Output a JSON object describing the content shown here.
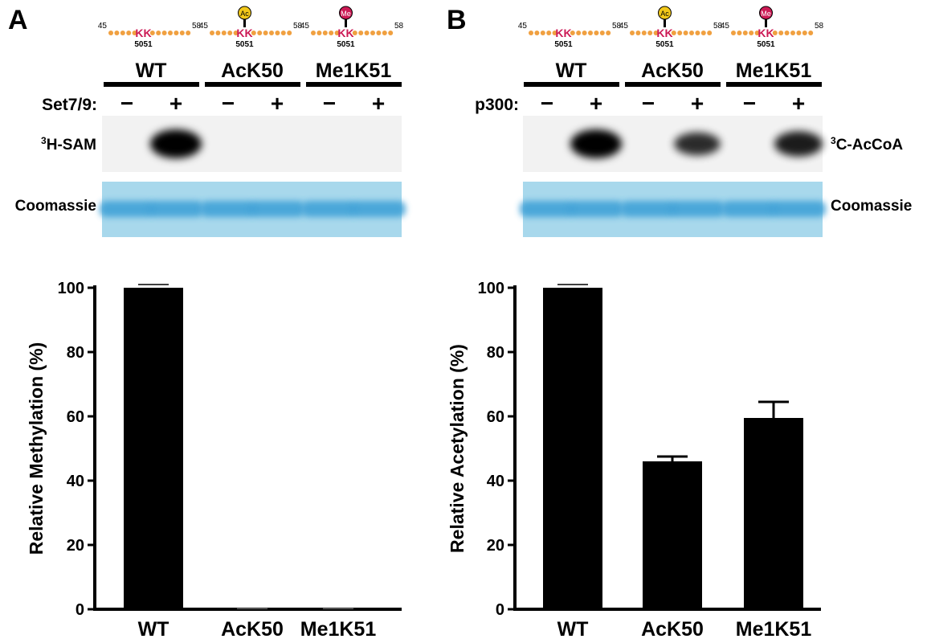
{
  "panels": [
    {
      "letter": "A",
      "enzyme_label": "Set7/9:",
      "blot_label": "H-SAM",
      "blot_label_sup": "3",
      "coomassie_label": "Coomassie",
      "peptides": [
        {
          "name": "WT",
          "start": "45",
          "end": "58",
          "kk": "KK",
          "positions": "5051",
          "modification": ""
        },
        {
          "name": "AcK50",
          "start": "45",
          "end": "58",
          "kk": "KK",
          "positions": "5051",
          "modification": "Ac"
        },
        {
          "name": "Me1K51",
          "start": "45",
          "end": "58",
          "kk": "KK",
          "positions": "5051",
          "modification": "Me"
        }
      ],
      "treatment": [
        "−",
        "+",
        "−",
        "+",
        "−",
        "+"
      ],
      "band_intensity": [
        0,
        1.0,
        0,
        0,
        0,
        0
      ]
    },
    {
      "letter": "B",
      "enzyme_label": "p300:",
      "blot_label": "C-AcCoA",
      "blot_label_sup": "3",
      "coomassie_label": "Coomassie",
      "peptides": [
        {
          "name": "WT",
          "start": "45",
          "end": "58",
          "kk": "KK",
          "positions": "5051",
          "modification": ""
        },
        {
          "name": "AcK50",
          "start": "45",
          "end": "58",
          "kk": "KK",
          "positions": "5051",
          "modification": "Ac"
        },
        {
          "name": "Me1K51",
          "start": "45",
          "end": "58",
          "kk": "KK",
          "positions": "5051",
          "modification": "Me"
        }
      ],
      "treatment": [
        "−",
        "+",
        "−",
        "+",
        "−",
        "+"
      ],
      "band_intensity": [
        0,
        1.0,
        0,
        0.6,
        0,
        0.75
      ]
    }
  ],
  "colors": {
    "residue": "#f0a040",
    "kk": "#cc1a55",
    "ac": "#f2c81a",
    "me": "#cc1a55",
    "coomassie": "#3a9fd6",
    "coomassie_bg": "#a8d8ec",
    "blot_bg": "#f2f2f2"
  },
  "chart_data": [
    {
      "type": "bar",
      "categories": [
        "WT",
        "AcK50",
        "Me1K51"
      ],
      "values": [
        100,
        0,
        0
      ],
      "errors": [
        1,
        0,
        0
      ],
      "ylabel": "Relative Methylation (%)",
      "ylim": [
        0,
        100
      ],
      "yticks": [
        "0",
        "20",
        "40",
        "60",
        "80",
        "100"
      ]
    },
    {
      "type": "bar",
      "categories": [
        "WT",
        "AcK50",
        "Me1K51"
      ],
      "values": [
        100,
        46,
        59.5
      ],
      "errors": [
        1,
        1.5,
        5
      ],
      "ylabel": "Relative Acetylation (%)",
      "ylim": [
        0,
        100
      ],
      "yticks": [
        "0",
        "20",
        "40",
        "60",
        "80",
        "100"
      ]
    }
  ]
}
